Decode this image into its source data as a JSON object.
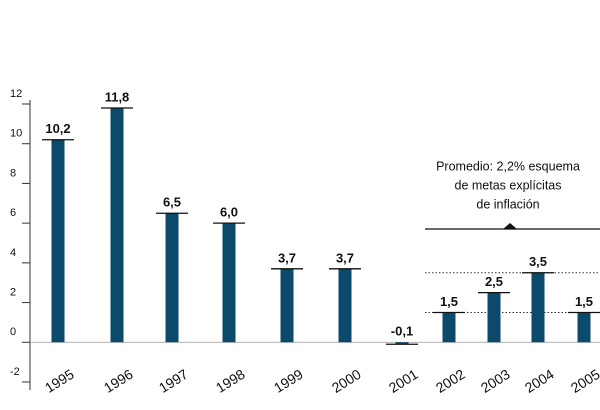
{
  "chart_data": {
    "type": "bar",
    "categories": [
      "1995",
      "1996",
      "1997",
      "1998",
      "1999",
      "2000",
      "2001",
      "2002",
      "2003",
      "2004",
      "2005"
    ],
    "values": [
      10.2,
      11.8,
      6.5,
      6.0,
      3.7,
      3.7,
      -0.1,
      1.5,
      2.5,
      3.5,
      1.5
    ],
    "value_labels": [
      "10,2",
      "11,8",
      "6,5",
      "6,0",
      "3,7",
      "3,7",
      "-0,1",
      "1,5",
      "2,5",
      "3,5",
      "1,5"
    ],
    "color": "#0b4a6b",
    "ylim": [
      -2,
      12
    ],
    "yticks": [
      -2,
      0,
      2,
      4,
      6,
      8,
      10,
      12
    ],
    "reference_lines": [
      3.5,
      1.5
    ],
    "annotation": [
      "Promedio: 2,2% esquema",
      "de metas explícitas",
      "de inflación"
    ]
  }
}
